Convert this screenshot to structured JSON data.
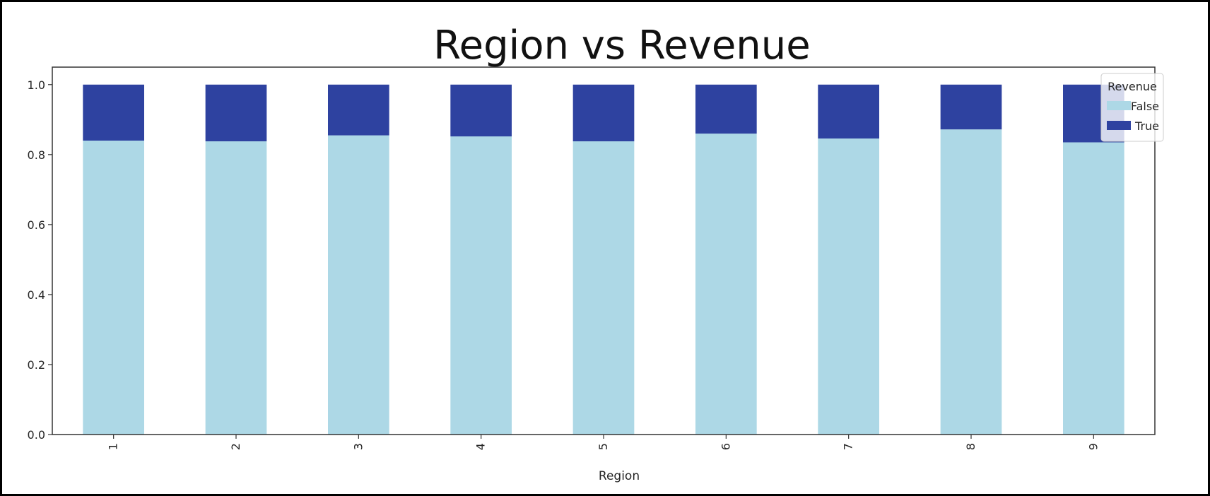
{
  "chart_data": {
    "type": "bar",
    "stacked": true,
    "title": "Region vs Revenue",
    "xlabel": "Region",
    "ylabel": "",
    "categories": [
      "1",
      "2",
      "3",
      "4",
      "5",
      "6",
      "7",
      "8",
      "9"
    ],
    "series": [
      {
        "name": "False",
        "color": "#add8e6",
        "values": [
          0.84,
          0.838,
          0.855,
          0.852,
          0.838,
          0.86,
          0.846,
          0.872,
          0.835
        ]
      },
      {
        "name": "True",
        "color": "#2e42a0",
        "values": [
          0.16,
          0.162,
          0.145,
          0.148,
          0.162,
          0.14,
          0.154,
          0.128,
          0.165
        ]
      }
    ],
    "ylim": [
      0,
      1.05
    ],
    "yticks": [
      "0.0",
      "0.2",
      "0.4",
      "0.6",
      "0.8",
      "1.0"
    ],
    "ytick_values": [
      0,
      0.2,
      0.4,
      0.6,
      0.8,
      1.0
    ],
    "legend": {
      "title": "Revenue",
      "placement": "top-right"
    },
    "grid": false
  }
}
